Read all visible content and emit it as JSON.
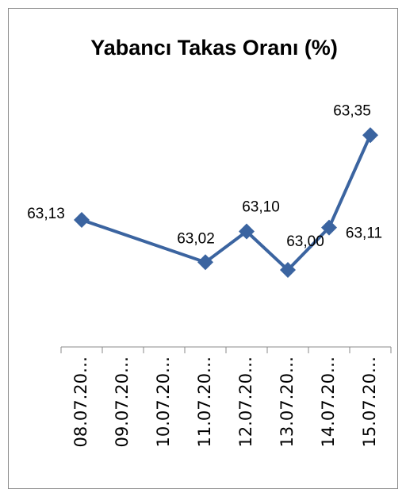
{
  "chart_data": {
    "type": "line",
    "title": "Yabancı Takas Oranı (%)",
    "categories": [
      "08.07.20…",
      "09.07.20…",
      "10.07.20…",
      "11.07.20…",
      "12.07.20…",
      "13.07.20…",
      "14.07.20…",
      "15.07.20…"
    ],
    "series": [
      {
        "name": "Yabancı Takas Oranı (%)",
        "color": "#3b64a0",
        "values": [
          63.13,
          null,
          null,
          63.02,
          63.1,
          63.0,
          63.11,
          63.35
        ],
        "value_labels": [
          "63,13",
          null,
          null,
          "63,02",
          "63,10",
          "63,00",
          "63,11",
          "63,35"
        ]
      }
    ],
    "ylim": [
      62.8,
      63.4
    ],
    "span_gaps": true,
    "legend": false
  }
}
